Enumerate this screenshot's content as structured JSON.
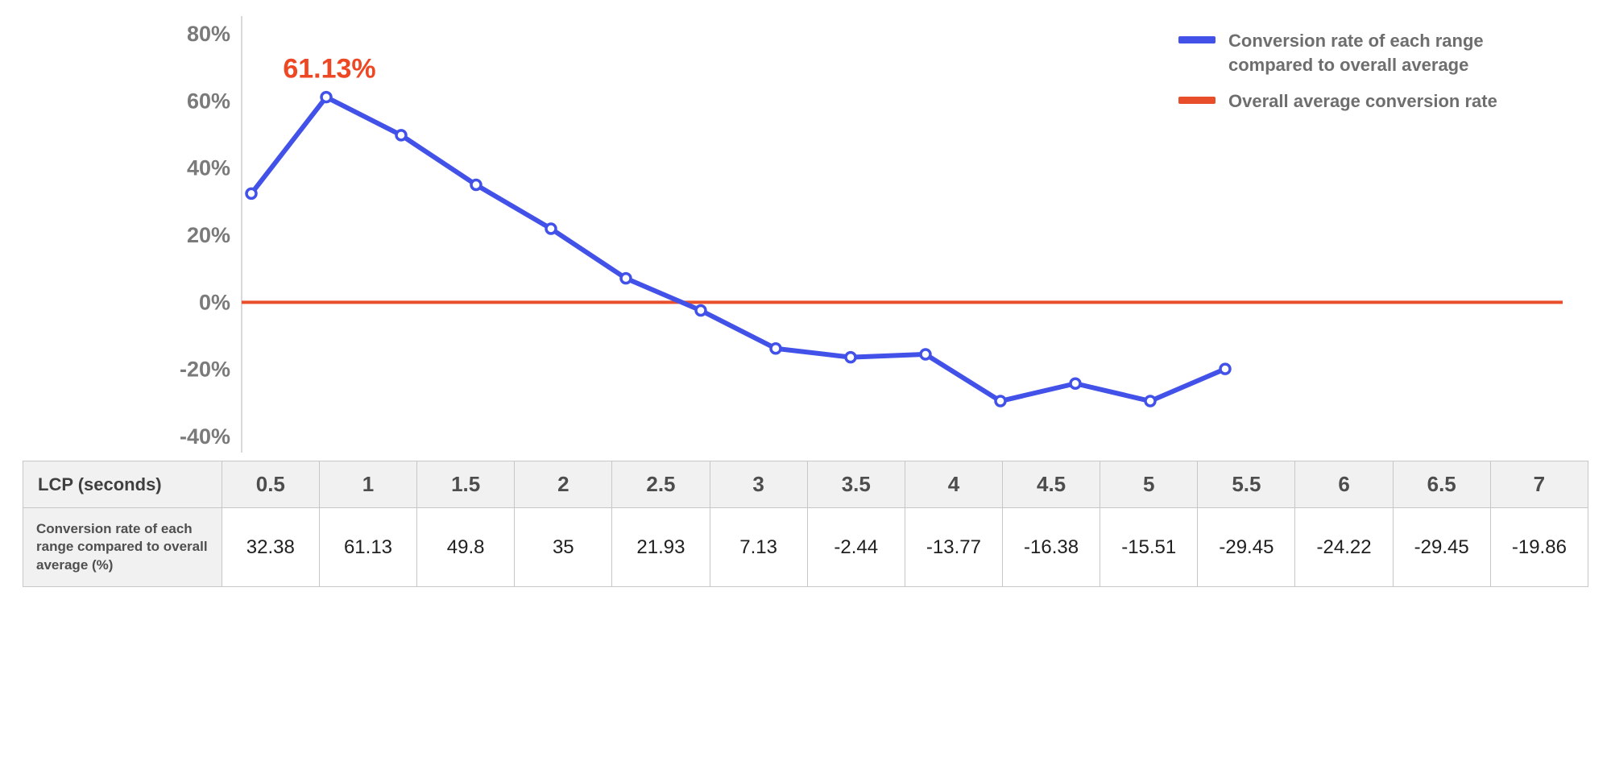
{
  "chart_data": {
    "type": "line",
    "title": "",
    "xlabel": "LCP (seconds)",
    "ylabel": "",
    "x_categories": [
      "0.5",
      "1",
      "1.5",
      "2",
      "2.5",
      "3",
      "3.5",
      "4",
      "4.5",
      "5",
      "5.5",
      "6",
      "6.5",
      "7"
    ],
    "series": [
      {
        "name": "Conversion rate of each range compared to overall average",
        "values": [
          32.38,
          61.13,
          49.8,
          35,
          21.93,
          7.13,
          -2.44,
          -13.77,
          -16.38,
          -15.51,
          -29.45,
          -24.22,
          -29.45,
          -19.86
        ],
        "color": "#4252e8"
      }
    ],
    "reference_line": {
      "value": 0,
      "name": "Overall average conversion rate",
      "color": "#e94e2b"
    },
    "annotation": {
      "text": "61.13%",
      "x_index": 1,
      "value": 61.13,
      "color": "#ee4723"
    },
    "y_ticks": [
      80,
      60,
      40,
      20,
      0,
      -20,
      -40
    ],
    "y_tick_labels": [
      "80%",
      "60%",
      "40%",
      "20%",
      "0%",
      "-20%",
      "-40%"
    ],
    "ylim": [
      -40,
      80
    ],
    "grid": false,
    "legend_position": "top-right",
    "axis_color": "#d9d9d9",
    "tick_label_color": "#7a7a7a"
  },
  "legend": {
    "items": [
      {
        "label": "Conversion rate of each range compared to overall average",
        "color": "#4252e8"
      },
      {
        "label": "Overall average conversion rate",
        "color": "#e94e2b"
      }
    ]
  },
  "table": {
    "header_label": "LCP (seconds)",
    "row_label": "Conversion rate of each range compared to overall average (%)",
    "columns": [
      "0.5",
      "1",
      "1.5",
      "2",
      "2.5",
      "3",
      "3.5",
      "4",
      "4.5",
      "5",
      "5.5",
      "6",
      "6.5",
      "7"
    ],
    "values": [
      "32.38",
      "61.13",
      "49.8",
      "35",
      "21.93",
      "7.13",
      "-2.44",
      "-13.77",
      "-16.38",
      "-15.51",
      "-29.45",
      "-24.22",
      "-29.45",
      "-19.86"
    ]
  }
}
